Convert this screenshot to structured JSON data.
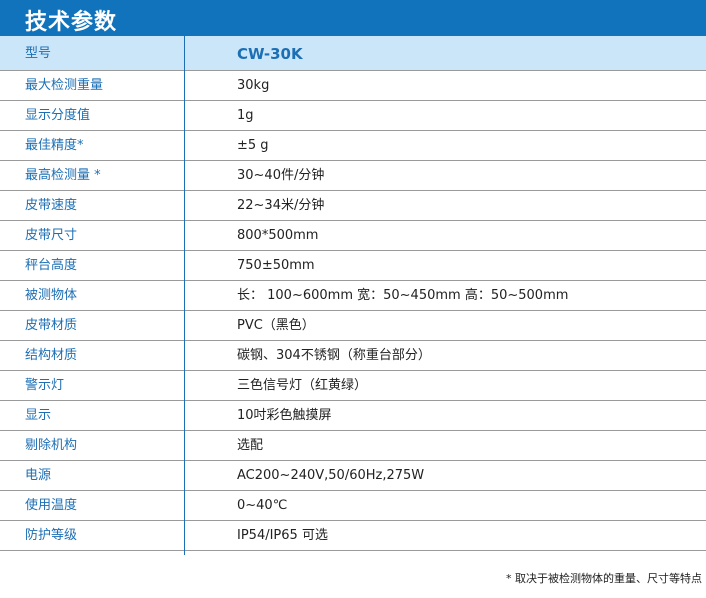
{
  "title": "技术参数",
  "header": {
    "label": "型号",
    "value": "CW-30K"
  },
  "rows": [
    {
      "label": "最大检测重量",
      "value": "30kg"
    },
    {
      "label": "显示分度值",
      "value": "1g"
    },
    {
      "label": "最佳精度*",
      "value": "±5 g"
    },
    {
      "label": "最高检测量 *",
      "value": "30~40件/分钟"
    },
    {
      "label": "皮带速度",
      "value": "22~34米/分钟"
    },
    {
      "label": "皮带尺寸",
      "value": "800*500mm"
    },
    {
      "label": "秤台高度",
      "value": "750±50mm"
    },
    {
      "label": "被测物体",
      "value": "长： 100~600mm   宽：50~450mm   高：50~500mm"
    },
    {
      "label": "皮带材质",
      "value": "PVC（黑色）"
    },
    {
      "label": "结构材质",
      "value": "碳钢、304不锈钢（称重台部分）"
    },
    {
      "label": "警示灯",
      "value": "三色信号灯（红黄绿）"
    },
    {
      "label": "显示",
      "value": "10吋彩色触摸屏"
    },
    {
      "label": "剔除机构",
      "value": "选配"
    },
    {
      "label": "电源",
      "value": "AC200~240V,50/60Hz,275W"
    },
    {
      "label": "使用温度",
      "value": "0~40℃"
    },
    {
      "label": "防护等级",
      "value": "IP54/IP65 可选"
    }
  ],
  "footnote": "* 取决于被检测物体的重量、尺寸等特点"
}
